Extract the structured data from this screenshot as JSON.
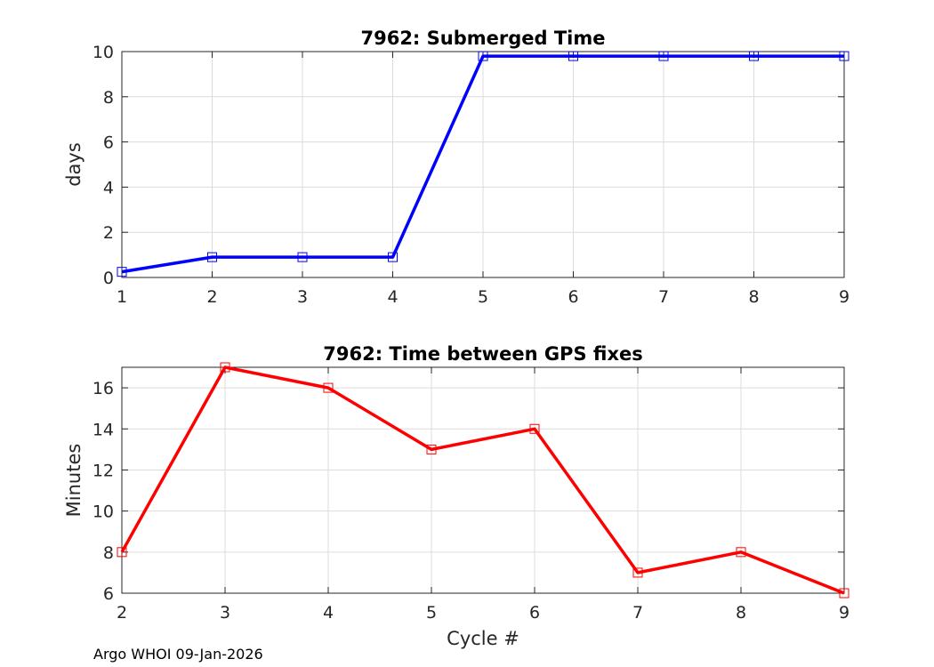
{
  "chart_data": [
    {
      "type": "line",
      "title": "7962: Submerged Time",
      "xlabel": "",
      "ylabel": "days",
      "xlim": [
        1,
        9
      ],
      "ylim": [
        0,
        10
      ],
      "xticks": [
        "1",
        "2",
        "3",
        "4",
        "5",
        "6",
        "7",
        "8",
        "9"
      ],
      "yticks": [
        "0",
        "2",
        "4",
        "6",
        "8",
        "10"
      ],
      "grid": true,
      "series": [
        {
          "name": "Submerged Time",
          "color": "#0000ff",
          "marker": "square",
          "x": [
            1,
            2,
            3,
            4,
            5,
            6,
            7,
            8,
            9
          ],
          "y": [
            0.25,
            0.9,
            0.9,
            0.9,
            9.8,
            9.8,
            9.8,
            9.8,
            9.8
          ]
        }
      ]
    },
    {
      "type": "line",
      "title": "7962: Time between GPS fixes",
      "xlabel": "Cycle #",
      "ylabel": "Minutes",
      "xlim": [
        2,
        9
      ],
      "ylim": [
        6,
        17
      ],
      "xticks": [
        "2",
        "3",
        "4",
        "5",
        "6",
        "7",
        "8",
        "9"
      ],
      "yticks": [
        "6",
        "8",
        "10",
        "12",
        "14",
        "16"
      ],
      "grid": true,
      "series": [
        {
          "name": "Time between GPS fixes",
          "color": "#ff0000",
          "marker": "square",
          "x": [
            2,
            3,
            4,
            5,
            6,
            7,
            8,
            9
          ],
          "y": [
            8,
            17,
            16,
            13,
            14,
            7,
            8,
            6
          ]
        }
      ]
    }
  ],
  "footer": "Argo WHOI 09-Jan-2026"
}
